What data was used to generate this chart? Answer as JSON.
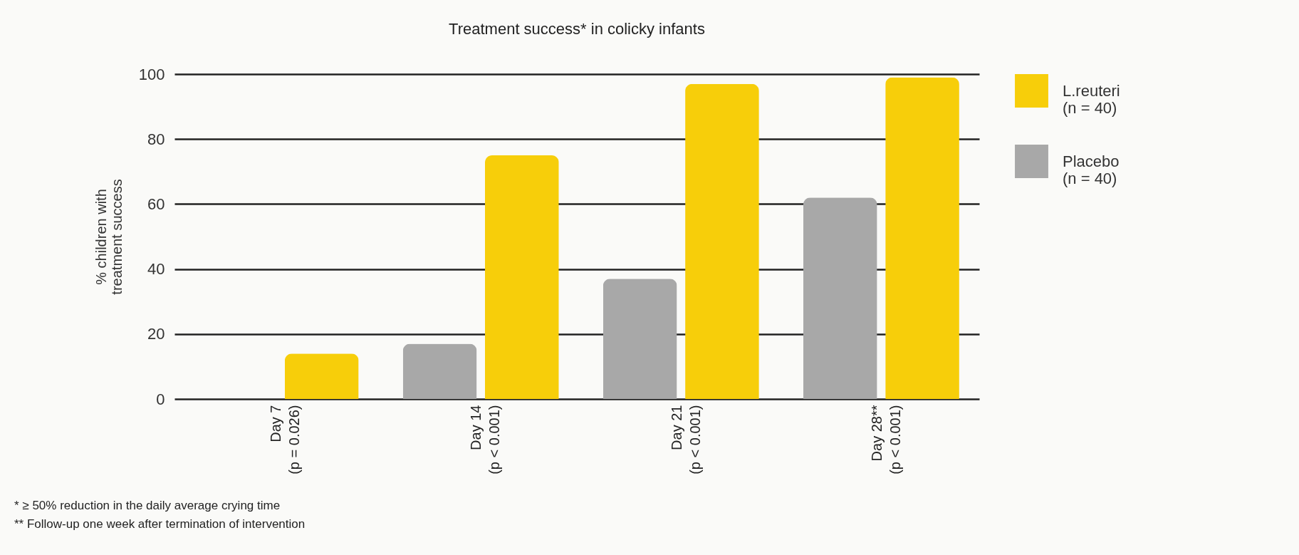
{
  "chart_data": {
    "type": "bar",
    "title": "Treatment success* in colicky infants",
    "ylabel": "% children with\ntreatment success",
    "categories": [
      "Day 7\n(p = 0.026)",
      "Day 14\n(p < 0.001)",
      "Day 21\n(p < 0.001)",
      "Day 28**\n(p < 0.001)"
    ],
    "series": [
      {
        "name": "L.reuteri\n(n = 40)",
        "color": "#f7ce0a",
        "values": [
          14,
          75,
          97,
          99
        ]
      },
      {
        "name": "Placebo\n(n = 40)",
        "color": "#a8a8a8",
        "values": [
          0,
          17,
          37,
          62
        ]
      }
    ],
    "ylim": [
      0,
      100
    ],
    "yticks": [
      0,
      20,
      40,
      60,
      80,
      100
    ],
    "grid": "y",
    "legend": "top right",
    "annotations": [
      "* ≥ 50% reduction in the daily average crying time",
      "** Follow-up one week after termination of intervention"
    ]
  }
}
